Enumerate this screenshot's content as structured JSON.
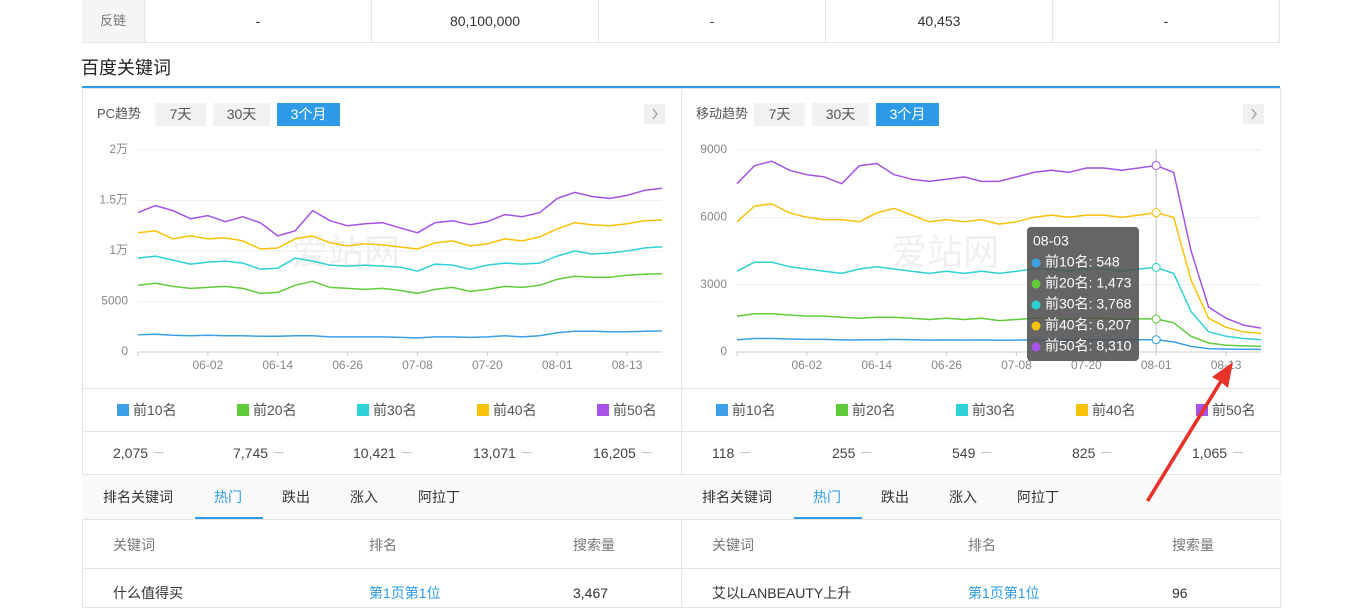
{
  "top_table": {
    "row": [
      "反链",
      "-",
      "80,100,000",
      "-",
      "40,453",
      "-"
    ]
  },
  "section_title": "百度关键词",
  "watermark": "爱站网",
  "panels": [
    {
      "title": "PC趋势",
      "tabs": [
        "7天",
        "30天",
        "3个月"
      ],
      "latest": [
        "2,075",
        "7,745",
        "10,421",
        "13,071",
        "16,205"
      ],
      "subtabs": [
        "排名关键词",
        "热门",
        "跌出",
        "涨入",
        "阿拉丁"
      ],
      "columns": [
        "关键词",
        "排名",
        "搜索量"
      ],
      "rows": [
        [
          "什么值得买",
          "第1页第1位",
          "3,467"
        ]
      ]
    },
    {
      "title": "移动趋势",
      "tabs": [
        "7天",
        "30天",
        "3个月"
      ],
      "latest": [
        "118",
        "255",
        "549",
        "825",
        "1,065"
      ],
      "subtabs": [
        "排名关键词",
        "热门",
        "跌出",
        "涨入",
        "阿拉丁"
      ],
      "columns": [
        "关键词",
        "排名",
        "搜索量"
      ],
      "rows": [
        [
          "艾以LANBEAUTY上升",
          "第1页第1位",
          "96"
        ]
      ],
      "tooltip": {
        "title": "08-03",
        "items": [
          "前10名: 548",
          "前20名: 1,473",
          "前30名: 3,768",
          "前40名: 6,207",
          "前50名: 8,310"
        ]
      }
    }
  ],
  "chart_data": [
    {
      "type": "line",
      "ylim": [
        0,
        20000
      ],
      "yticks": [
        0,
        5000,
        {
          "value": 10000,
          "label": "1万"
        },
        {
          "value": 15000,
          "label": "1.5万"
        },
        {
          "value": 20000,
          "label": "2万"
        }
      ],
      "grid": true,
      "categories": [
        null,
        null,
        null,
        null,
        "06-02",
        null,
        null,
        null,
        "06-14",
        null,
        null,
        null,
        "06-26",
        null,
        null,
        null,
        "07-08",
        null,
        null,
        null,
        "07-20",
        null,
        null,
        null,
        "08-01",
        null,
        null,
        null,
        "08-13",
        null,
        null
      ],
      "series": [
        {
          "name": "前10名",
          "color": "#3ba0e8",
          "values": [
            1700,
            1750,
            1650,
            1600,
            1650,
            1600,
            1600,
            1550,
            1550,
            1600,
            1600,
            1500,
            1500,
            1500,
            1500,
            1450,
            1400,
            1500,
            1500,
            1450,
            1500,
            1600,
            1500,
            1600,
            1900,
            2050,
            2050,
            2000,
            2000,
            2050,
            2075
          ]
        },
        {
          "name": "前20名",
          "color": "#5fcc3a",
          "values": [
            6600,
            6800,
            6500,
            6300,
            6400,
            6500,
            6300,
            5800,
            5900,
            6600,
            7000,
            6400,
            6300,
            6200,
            6300,
            6100,
            5800,
            6200,
            6400,
            6000,
            6200,
            6500,
            6400,
            6600,
            7200,
            7500,
            7400,
            7400,
            7600,
            7700,
            7745
          ]
        },
        {
          "name": "前30名",
          "color": "#2ed1d6",
          "values": [
            9300,
            9500,
            9100,
            8700,
            8900,
            9000,
            8800,
            8200,
            8300,
            9300,
            9000,
            8600,
            8500,
            8600,
            8500,
            8400,
            8000,
            8700,
            8600,
            8200,
            8600,
            8800,
            8700,
            8800,
            9500,
            10000,
            9700,
            9800,
            10000,
            10300,
            10421
          ]
        },
        {
          "name": "前40名",
          "color": "#f9c20a",
          "values": [
            11800,
            12000,
            11200,
            11500,
            11200,
            11300,
            11000,
            10200,
            10300,
            11200,
            11500,
            10800,
            10500,
            10700,
            10600,
            10400,
            10200,
            10800,
            11000,
            10500,
            10700,
            11200,
            11000,
            11400,
            12200,
            12800,
            12600,
            12500,
            12700,
            13000,
            13071
          ]
        },
        {
          "name": "前50名",
          "color": "#a553e8",
          "values": [
            13800,
            14500,
            14000,
            13200,
            13500,
            12900,
            13400,
            12800,
            11500,
            12000,
            14000,
            13000,
            12500,
            12700,
            12800,
            12300,
            11800,
            12800,
            13000,
            12600,
            12900,
            13600,
            13400,
            13800,
            15200,
            15800,
            15400,
            15200,
            15500,
            16000,
            16205
          ]
        }
      ]
    },
    {
      "type": "line",
      "ylim": [
        0,
        9000
      ],
      "yticks": [
        0,
        3000,
        6000,
        9000
      ],
      "grid": true,
      "categories": [
        null,
        null,
        null,
        null,
        "06-02",
        null,
        null,
        null,
        "06-14",
        null,
        null,
        null,
        "06-26",
        null,
        null,
        null,
        "07-08",
        null,
        null,
        null,
        "07-20",
        null,
        null,
        null,
        "08-01",
        null,
        null,
        null,
        "08-13",
        null,
        null
      ],
      "series": [
        {
          "name": "前10名",
          "color": "#3ba0e8",
          "values": [
            550,
            600,
            600,
            580,
            560,
            560,
            540,
            540,
            550,
            560,
            550,
            530,
            540,
            530,
            540,
            520,
            530,
            540,
            550,
            540,
            550,
            550,
            540,
            550,
            548,
            450,
            250,
            150,
            130,
            120,
            118
          ]
        },
        {
          "name": "前20名",
          "color": "#5fcc3a",
          "values": [
            1600,
            1700,
            1700,
            1650,
            1600,
            1600,
            1550,
            1500,
            1550,
            1550,
            1500,
            1450,
            1500,
            1450,
            1500,
            1400,
            1450,
            1500,
            1500,
            1450,
            1500,
            1500,
            1450,
            1480,
            1473,
            1300,
            700,
            400,
            300,
            270,
            255
          ]
        },
        {
          "name": "前30名",
          "color": "#2ed1d6",
          "values": [
            3600,
            4000,
            4000,
            3800,
            3700,
            3600,
            3500,
            3700,
            3800,
            3700,
            3600,
            3500,
            3600,
            3500,
            3600,
            3500,
            3600,
            3700,
            3700,
            3600,
            3700,
            3700,
            3600,
            3700,
            3768,
            3500,
            1800,
            900,
            700,
            600,
            549
          ]
        },
        {
          "name": "前40名",
          "color": "#f9c20a",
          "values": [
            5800,
            6500,
            6600,
            6200,
            6000,
            5900,
            5900,
            5800,
            6200,
            6400,
            6100,
            5800,
            5900,
            5800,
            5900,
            5700,
            5800,
            6000,
            6100,
            6000,
            6100,
            6100,
            6000,
            6100,
            6207,
            6000,
            3200,
            1500,
            1100,
            900,
            825
          ]
        },
        {
          "name": "前50名",
          "color": "#a553e8",
          "values": [
            7500,
            8300,
            8500,
            8100,
            7900,
            7800,
            7500,
            8300,
            8400,
            7900,
            7700,
            7600,
            7700,
            7800,
            7600,
            7600,
            7800,
            8000,
            8100,
            8000,
            8200,
            8200,
            8100,
            8200,
            8310,
            8000,
            4500,
            2000,
            1500,
            1200,
            1065
          ]
        }
      ]
    }
  ]
}
